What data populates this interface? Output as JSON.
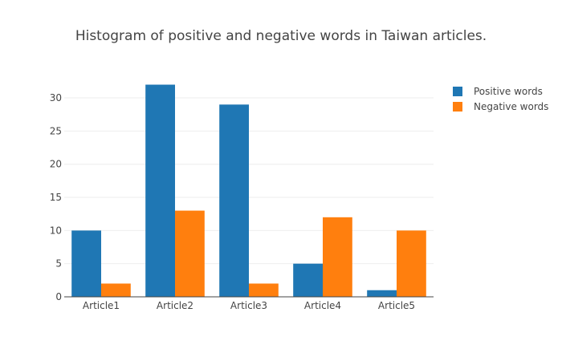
{
  "chart_data": {
    "type": "bar",
    "title": "Histogram of positive and negative words in Taiwan articles.",
    "xlabel": "",
    "ylabel": "",
    "categories": [
      "Article1",
      "Article2",
      "Article3",
      "Article4",
      "Article5"
    ],
    "series": [
      {
        "name": "Positive words",
        "values": [
          10,
          32,
          29,
          5,
          1
        ],
        "color": "#1f77b4"
      },
      {
        "name": "Negative words",
        "values": [
          2,
          13,
          2,
          12,
          10
        ],
        "color": "#ff7f0e"
      }
    ],
    "ylim": [
      0,
      34
    ],
    "yticks": [
      0,
      5,
      10,
      15,
      20,
      25,
      30
    ],
    "grid": true,
    "legend_position": "top-right"
  }
}
